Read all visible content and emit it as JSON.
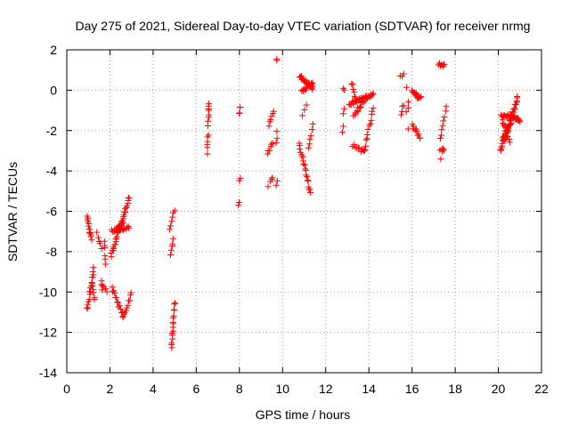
{
  "chart_data": {
    "type": "scatter",
    "title": "Day 275 of 2021, Sidereal Day-to-day VTEC variation (SDTVAR) for receiver nrmg",
    "xlabel": "GPS time / hours",
    "ylabel": "SDTVAR / TECUs",
    "xlim": [
      0,
      22
    ],
    "ylim": [
      -14,
      2
    ],
    "x_ticks": [
      0,
      2,
      4,
      6,
      8,
      10,
      12,
      14,
      16,
      18,
      20,
      22
    ],
    "y_ticks": [
      -14,
      -12,
      -10,
      -8,
      -6,
      -4,
      -2,
      0,
      2
    ],
    "grid": true,
    "marker": "plus",
    "color": "#ff0000",
    "series": [
      {
        "name": "SDTVAR",
        "tracks": [
          {
            "from": [
              0.95,
              -6.3
            ],
            "to": [
              1.15,
              -7.4
            ],
            "n": 14
          },
          {
            "from": [
              0.95,
              -10.9
            ],
            "to": [
              1.25,
              -8.8
            ],
            "n": 16
          },
          {
            "from": [
              1.15,
              -9.6
            ],
            "to": [
              1.3,
              -10.4
            ],
            "n": 6
          },
          {
            "from": [
              1.4,
              -7.1
            ],
            "to": [
              1.6,
              -7.8
            ],
            "n": 5
          },
          {
            "from": [
              1.6,
              -9.4
            ],
            "to": [
              1.65,
              -9.9
            ],
            "n": 4
          },
          {
            "from": [
              1.75,
              -7.4
            ],
            "to": [
              1.8,
              -8.6
            ],
            "n": 6
          },
          {
            "from": [
              1.7,
              -9.8
            ],
            "to": [
              1.85,
              -10.0
            ],
            "n": 3
          },
          {
            "from": [
              2.05,
              -8.2
            ],
            "to": [
              2.9,
              -5.3
            ],
            "n": 34
          },
          {
            "from": [
              2.1,
              -7.0
            ],
            "to": [
              2.6,
              -6.6
            ],
            "n": 12
          },
          {
            "from": [
              2.1,
              -9.8
            ],
            "to": [
              2.6,
              -11.2
            ],
            "n": 14
          },
          {
            "from": [
              2.6,
              -11.2
            ],
            "to": [
              3.0,
              -10.1
            ],
            "n": 10
          },
          {
            "from": [
              2.4,
              -6.9
            ],
            "to": [
              2.9,
              -6.8
            ],
            "n": 10
          },
          {
            "from": [
              4.75,
              -6.9
            ],
            "to": [
              5.0,
              -5.9
            ],
            "n": 6
          },
          {
            "from": [
              4.8,
              -8.1
            ],
            "to": [
              4.95,
              -7.4
            ],
            "n": 5
          },
          {
            "from": [
              4.85,
              -12.8
            ],
            "to": [
              5.0,
              -10.5
            ],
            "n": 16
          },
          {
            "from": [
              6.5,
              -3.1
            ],
            "to": [
              6.55,
              -2.2
            ],
            "n": 6
          },
          {
            "from": [
              6.55,
              -1.7
            ],
            "to": [
              6.6,
              -0.6
            ],
            "n": 8
          },
          {
            "from": [
              8.0,
              -1.2
            ],
            "to": [
              8.05,
              -0.9
            ],
            "n": 3
          },
          {
            "from": [
              8.0,
              -4.5
            ],
            "to": [
              8.05,
              -4.3
            ],
            "n": 2
          },
          {
            "from": [
              7.95,
              -5.75
            ],
            "to": [
              8.0,
              -5.6
            ],
            "n": 2
          },
          {
            "from": [
              9.3,
              -3.2
            ],
            "to": [
              9.55,
              -2.6
            ],
            "n": 6
          },
          {
            "from": [
              9.35,
              -1.7
            ],
            "to": [
              9.6,
              -1.0
            ],
            "n": 6
          },
          {
            "from": [
              9.35,
              -4.7
            ],
            "to": [
              9.55,
              -4.4
            ],
            "n": 4
          },
          {
            "from": [
              9.7,
              -2.6
            ],
            "to": [
              9.75,
              -2.1
            ],
            "n": 3
          },
          {
            "from": [
              9.7,
              -4.7
            ],
            "to": [
              9.75,
              -4.5
            ],
            "n": 2
          },
          {
            "from": [
              9.72,
              1.55
            ],
            "to": [
              9.76,
              1.6
            ],
            "n": 2
          },
          {
            "from": [
              10.75,
              -2.6
            ],
            "to": [
              11.3,
              -5.1
            ],
            "n": 20
          },
          {
            "from": [
              10.9,
              -1.2
            ],
            "to": [
              11.1,
              -0.8
            ],
            "n": 3
          },
          {
            "from": [
              11.2,
              -2.9
            ],
            "to": [
              11.4,
              -1.7
            ],
            "n": 6
          },
          {
            "from": [
              10.8,
              0.7
            ],
            "to": [
              11.4,
              0.1
            ],
            "n": 22
          },
          {
            "from": [
              10.9,
              -0.1
            ],
            "to": [
              11.4,
              0.4
            ],
            "n": 14
          },
          {
            "from": [
              12.75,
              -2.0
            ],
            "to": [
              12.8,
              -1.8
            ],
            "n": 2
          },
          {
            "from": [
              12.8,
              0.0
            ],
            "to": [
              12.85,
              0.05
            ],
            "n": 2
          },
          {
            "from": [
              12.8,
              -1.2
            ],
            "to": [
              12.85,
              -0.9
            ],
            "n": 2
          },
          {
            "from": [
              13.2,
              0.4
            ],
            "to": [
              13.45,
              -0.8
            ],
            "n": 8
          },
          {
            "from": [
              13.1,
              -0.7
            ],
            "to": [
              14.2,
              -0.2
            ],
            "n": 30
          },
          {
            "from": [
              13.3,
              -1.3
            ],
            "to": [
              13.9,
              -0.3
            ],
            "n": 14
          },
          {
            "from": [
              13.25,
              -2.7
            ],
            "to": [
              13.8,
              -3.1
            ],
            "n": 10
          },
          {
            "from": [
              13.8,
              -2.9
            ],
            "to": [
              14.2,
              -0.9
            ],
            "n": 12
          },
          {
            "from": [
              15.45,
              0.7
            ],
            "to": [
              15.6,
              0.75
            ],
            "n": 3
          },
          {
            "from": [
              15.5,
              -1.2
            ],
            "to": [
              15.6,
              -0.7
            ],
            "n": 4
          },
          {
            "from": [
              15.75,
              -1.0
            ],
            "to": [
              15.85,
              -0.6
            ],
            "n": 3
          },
          {
            "from": [
              15.75,
              0.1
            ],
            "to": [
              15.8,
              0.1
            ],
            "n": 1
          },
          {
            "from": [
              15.8,
              -2.0
            ],
            "to": [
              15.85,
              -1.95
            ],
            "n": 1
          },
          {
            "from": [
              16.0,
              -0.1
            ],
            "to": [
              16.4,
              -0.4
            ],
            "n": 14
          },
          {
            "from": [
              16.0,
              -1.7
            ],
            "to": [
              16.4,
              -2.4
            ],
            "n": 10
          },
          {
            "from": [
              17.25,
              1.3
            ],
            "to": [
              17.5,
              1.2
            ],
            "n": 8
          },
          {
            "from": [
              17.3,
              -2.4
            ],
            "to": [
              17.6,
              -0.9
            ],
            "n": 8
          },
          {
            "from": [
              17.3,
              -3.0
            ],
            "to": [
              17.5,
              -2.9
            ],
            "n": 4
          },
          {
            "from": [
              17.35,
              -3.5
            ],
            "to": [
              17.4,
              -3.1
            ],
            "n": 2
          },
          {
            "from": [
              20.1,
              -3.0
            ],
            "to": [
              20.9,
              -0.4
            ],
            "n": 40
          },
          {
            "from": [
              20.15,
              -1.2
            ],
            "to": [
              20.95,
              -1.4
            ],
            "n": 22
          },
          {
            "from": [
              20.2,
              -2.4
            ],
            "to": [
              20.6,
              -1.6
            ],
            "n": 14
          },
          {
            "from": [
              20.2,
              -1.5
            ],
            "to": [
              20.5,
              -2.5
            ],
            "n": 12
          },
          {
            "from": [
              20.6,
              -1.2
            ],
            "to": [
              21.0,
              -1.6
            ],
            "n": 10
          }
        ]
      }
    ]
  }
}
